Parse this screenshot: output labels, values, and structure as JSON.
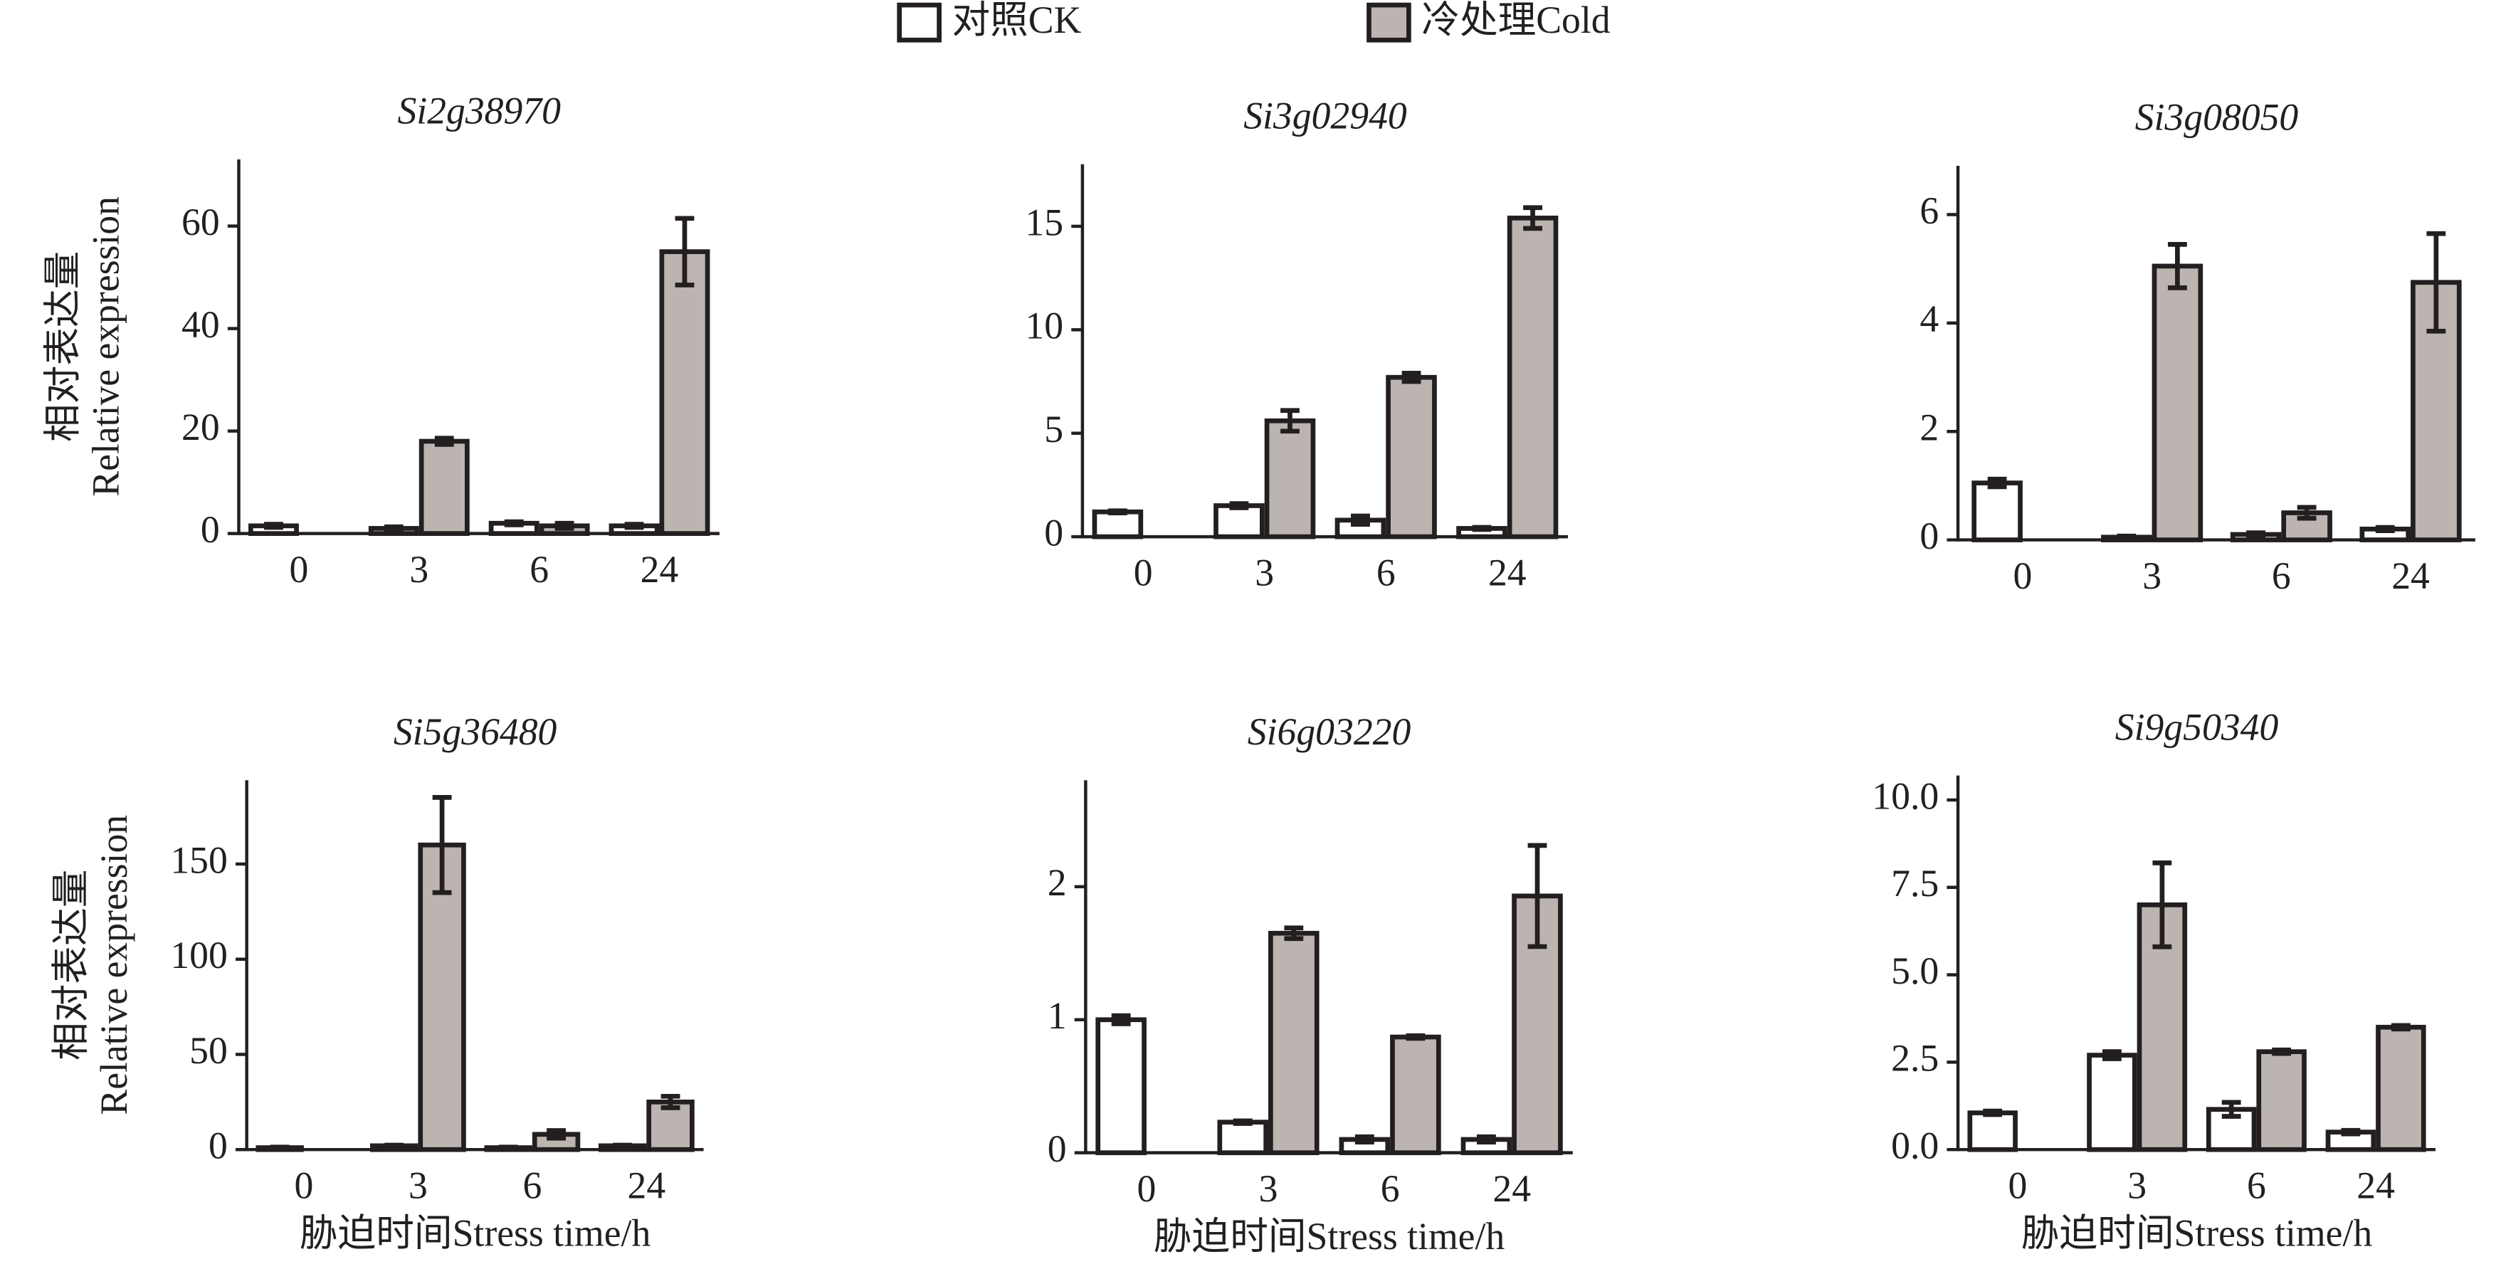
{
  "chart_data": [
    {
      "type": "bar",
      "title": "Si2g38970",
      "y_label": [
        "相对表达量",
        "Relative expression"
      ],
      "categories": [
        "0",
        "3",
        "6",
        "24"
      ],
      "series": [
        {
          "name": "对照CK",
          "color": "#ffffff",
          "values": [
            1.5,
            1,
            2,
            1.5
          ],
          "errors": [
            0.3,
            0.3,
            0.3,
            0.3
          ]
        },
        {
          "name": "冷处理Cold",
          "color": "#bcb4b0",
          "values": [
            null,
            18,
            1.5,
            55
          ],
          "errors": [
            null,
            0.6,
            0.5,
            6.5
          ]
        }
      ],
      "ylim": [
        0,
        73
      ],
      "yticks": [
        0,
        20,
        40,
        60
      ]
    },
    {
      "type": "bar",
      "title": "Si3g02940",
      "categories": [
        "0",
        "3",
        "6",
        "24"
      ],
      "series": [
        {
          "color": "#ffffff",
          "values": [
            1.2,
            1.5,
            0.8,
            0.4
          ],
          "errors": [
            0.05,
            0.1,
            0.2,
            0.05
          ]
        },
        {
          "color": "#bcb4b0",
          "values": [
            null,
            5.6,
            7.7,
            15.4
          ],
          "errors": [
            null,
            0.5,
            0.2,
            0.5
          ]
        }
      ],
      "ylim": [
        0,
        18
      ],
      "yticks": [
        0,
        5,
        10,
        15
      ]
    },
    {
      "type": "bar",
      "title": "Si3g08050",
      "categories": [
        "0",
        "3",
        "6",
        "24"
      ],
      "series": [
        {
          "color": "#ffffff",
          "values": [
            1.05,
            0.05,
            0.1,
            0.2
          ],
          "errors": [
            0.07,
            0.02,
            0.03,
            0.03
          ]
        },
        {
          "color": "#bcb4b0",
          "values": [
            null,
            5.05,
            0.5,
            4.75
          ],
          "errors": [
            null,
            0.4,
            0.1,
            0.9
          ]
        }
      ],
      "ylim": [
        0,
        6.9
      ],
      "yticks": [
        0,
        2,
        4,
        6
      ]
    },
    {
      "type": "bar",
      "title": "Si5g36480",
      "y_label": [
        "相对表达量",
        "Relative expression"
      ],
      "x_label": "胁迫时间Stress time/h",
      "categories": [
        "0",
        "3",
        "6",
        "24"
      ],
      "series": [
        {
          "color": "#ffffff",
          "values": [
            1,
            2,
            1,
            2
          ],
          "errors": [
            0.3,
            0.3,
            0.3,
            0.3
          ]
        },
        {
          "color": "#bcb4b0",
          "values": [
            null,
            160,
            8,
            25
          ],
          "errors": [
            null,
            25,
            2,
            3
          ]
        }
      ],
      "ylim": [
        0,
        194
      ],
      "yticks": [
        0,
        50,
        100,
        150
      ]
    },
    {
      "type": "bar",
      "title": "Si6g03220",
      "x_label": "胁迫时间Stress time/h",
      "categories": [
        "0",
        "3",
        "6",
        "24"
      ],
      "series": [
        {
          "color": "#ffffff",
          "values": [
            1.0,
            0.23,
            0.1,
            0.1
          ],
          "errors": [
            0.03,
            0.01,
            0.02,
            0.02
          ]
        },
        {
          "color": "#bcb4b0",
          "values": [
            null,
            1.65,
            0.87,
            1.93
          ],
          "errors": [
            null,
            0.04,
            0.01,
            0.38
          ]
        }
      ],
      "ylim": [
        0,
        2.8
      ],
      "yticks": [
        0,
        1,
        2
      ]
    },
    {
      "type": "bar",
      "title": "Si9g50340",
      "x_label": "胁迫时间Stress time/h",
      "categories": [
        "0",
        "3",
        "6",
        "24"
      ],
      "series": [
        {
          "color": "#ffffff",
          "values": [
            1.05,
            2.7,
            1.15,
            0.5
          ],
          "errors": [
            0.05,
            0.1,
            0.2,
            0.05
          ]
        },
        {
          "color": "#bcb4b0",
          "values": [
            null,
            7.0,
            2.8,
            3.5
          ],
          "errors": [
            null,
            1.2,
            0.05,
            0.05
          ]
        }
      ],
      "ylim": [
        0,
        10.7
      ],
      "yticks": [
        {
          "value": 0,
          "label": "0.0"
        },
        {
          "value": 2.5,
          "label": "2.5"
        },
        {
          "value": 5,
          "label": "5.0"
        },
        {
          "value": 7.5,
          "label": "7.5"
        },
        {
          "value": 10,
          "label": "10.0"
        }
      ]
    }
  ]
}
